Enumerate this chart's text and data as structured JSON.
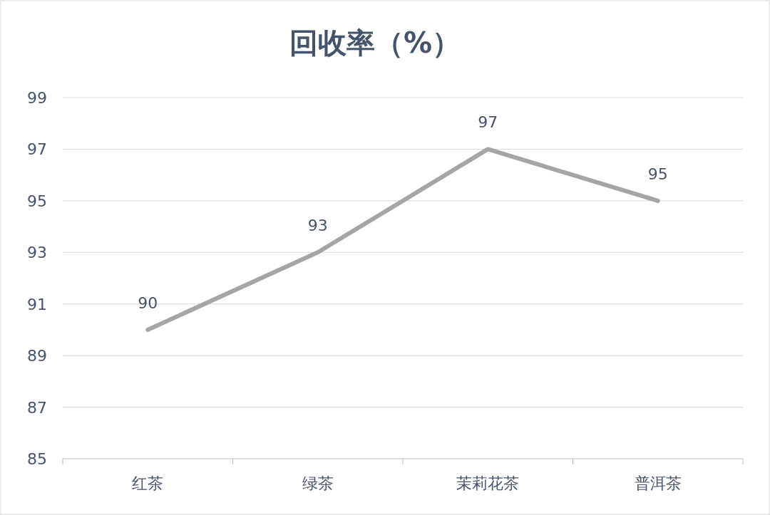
{
  "chart_data": {
    "type": "line",
    "title": "回收率（%）",
    "categories": [
      "红茶",
      "绿茶",
      "茉莉花茶",
      "普洱茶"
    ],
    "series": [
      {
        "color": "#a5a5a5",
        "values": [
          90,
          93,
          97,
          95
        ]
      }
    ],
    "ylim": [
      85,
      99
    ],
    "yticks": [
      85,
      87,
      89,
      91,
      93,
      95,
      97,
      99
    ],
    "grid": "y",
    "data_labels": true,
    "marker": "none",
    "line_style": "solid"
  }
}
